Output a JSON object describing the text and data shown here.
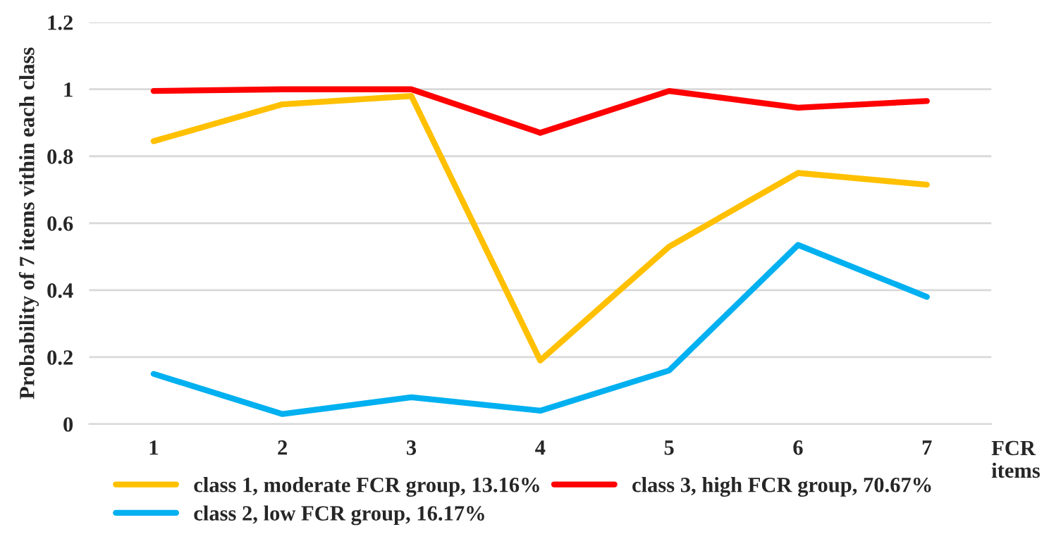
{
  "chart_data": {
    "type": "line",
    "xlabel": "FCR\nitems",
    "ylabel": "Probability of 7 items vithin each class",
    "categories": [
      "1",
      "2",
      "3",
      "4",
      "5",
      "6",
      "7"
    ],
    "series": [
      {
        "name": "class 1, moderate FCR group, 13.16%",
        "color": "#ffc000",
        "values": [
          0.845,
          0.955,
          0.98,
          0.19,
          0.53,
          0.75,
          0.715
        ]
      },
      {
        "name": "class 2, low FCR group, 16.17%",
        "color": "#00b0f0",
        "values": [
          0.15,
          0.03,
          0.08,
          0.04,
          0.16,
          0.535,
          0.38
        ]
      },
      {
        "name": "class 3, high FCR group, 70.67%",
        "color": "#ff0000",
        "values": [
          0.995,
          1.0,
          1.0,
          0.87,
          0.995,
          0.945,
          0.965
        ]
      }
    ],
    "ylim": [
      0,
      1.2
    ],
    "yticks": [
      0,
      0.2,
      0.4,
      0.6,
      0.8,
      1,
      1.2
    ],
    "grid": "y",
    "legend": "bottom",
    "marker": "none",
    "line_style": "solid"
  }
}
